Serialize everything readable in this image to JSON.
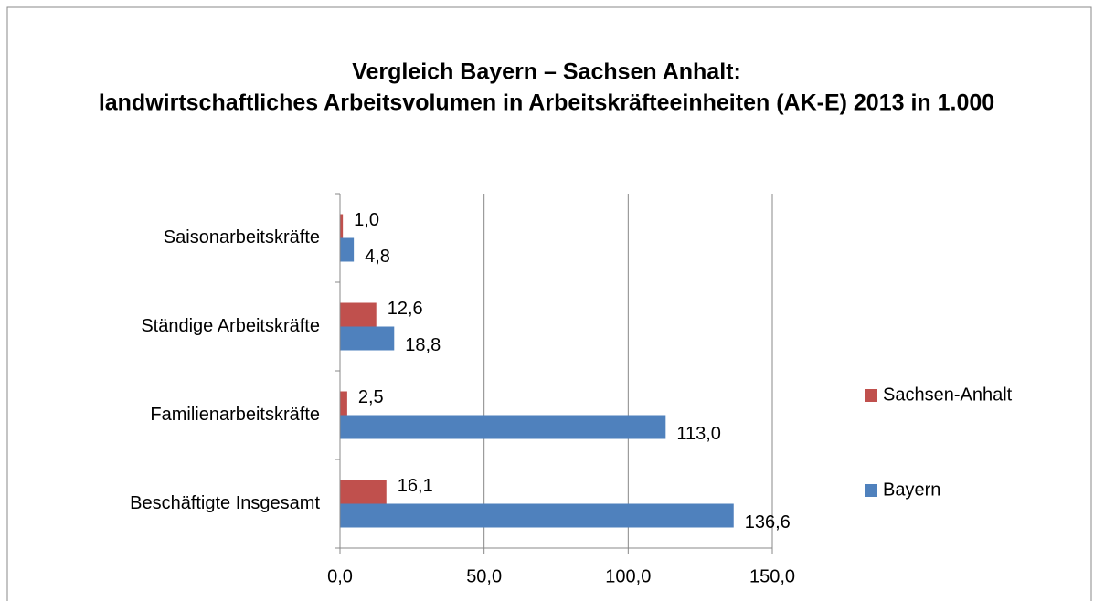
{
  "chart_data": {
    "type": "hbar",
    "title": "Vergleich Bayern – Sachsen Anhalt: landwirtschaftliches Arbeitsvolumen in Arbeitskräfteeinheiten (AK-E) 2013 in 1.000",
    "categories": [
      "Beschäftigte Insgesamt",
      "Familienarbeitskräfte",
      "Ständige Arbeitskräfte",
      "Saisonarbeitskräfte"
    ],
    "series": [
      {
        "name": "Bayern",
        "color": "#4f81bd",
        "values": [
          136.6,
          113.0,
          18.8,
          4.8
        ],
        "value_labels": [
          "136,6",
          "113,0",
          "18,8",
          "4,8"
        ]
      },
      {
        "name": "Sachsen-Anhalt",
        "color": "#c0504d",
        "values": [
          16.1,
          2.5,
          12.6,
          1.0
        ],
        "value_labels": [
          "16,1",
          "2,5",
          "12,6",
          "1,0"
        ]
      }
    ],
    "xlim": [
      0,
      150
    ],
    "xticks": [
      {
        "value": 0,
        "label": "0,0"
      },
      {
        "value": 50,
        "label": "50,0"
      },
      {
        "value": 100,
        "label": "100,0"
      },
      {
        "value": 150,
        "label": "150,0"
      }
    ],
    "grid": true,
    "legend": "right"
  }
}
